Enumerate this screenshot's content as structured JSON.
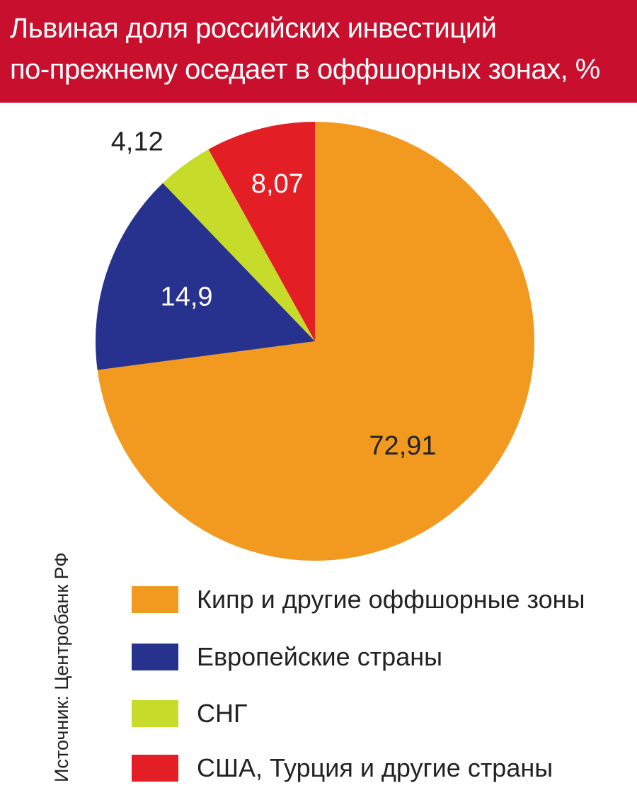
{
  "header": {
    "title_line1": "Львиная доля российских инвестиций",
    "title_line2": "по-прежнему оседает в оффшорных зонах, %",
    "background": "#c8102e"
  },
  "source": "Источник: Центробанк РФ",
  "chart_data": {
    "type": "pie",
    "title": "Львиная доля российских инвестиций по-прежнему оседает в оффшорных зонах, %",
    "slices": [
      {
        "label": "Кипр и другие оффшорные зоны",
        "value": 72.91,
        "display": "72,91",
        "color": "#f19a1f"
      },
      {
        "label": "Европейские страны",
        "value": 14.9,
        "display": "14,9",
        "color": "#27318e"
      },
      {
        "label": "СНГ",
        "value": 4.12,
        "display": "4,12",
        "color": "#c7dc2a"
      },
      {
        "label": "США, Турция и другие страны",
        "value": 8.07,
        "display": "8,07",
        "color": "#e31e24"
      }
    ],
    "start": "12 o'clock, clockwise",
    "legend_position": "bottom"
  }
}
